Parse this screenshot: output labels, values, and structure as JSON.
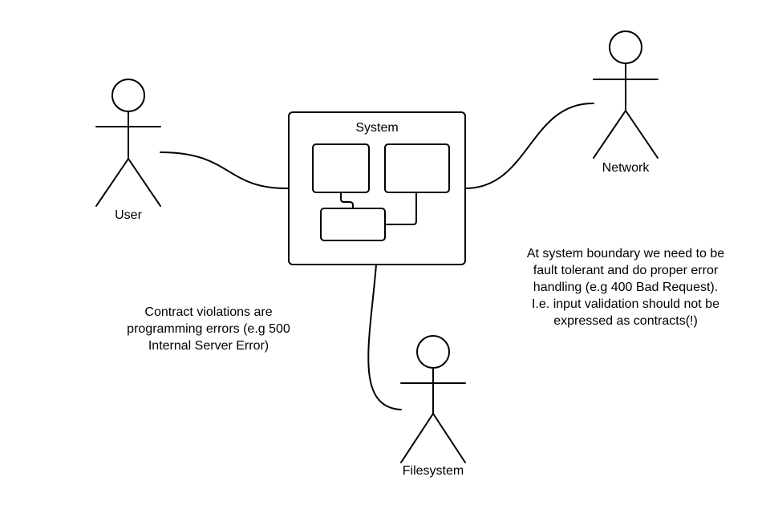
{
  "actors": {
    "user": {
      "label": "User"
    },
    "network": {
      "label": "Network"
    },
    "filesystem": {
      "label": "Filesystem"
    }
  },
  "system": {
    "label": "System"
  },
  "notes": {
    "contract": {
      "lines": [
        "Contract violations are",
        "programming errors (e.g 500",
        "Internal Server Error)"
      ]
    },
    "boundary": {
      "lines": [
        "At system boundary we need to be",
        "fault tolerant and do proper error",
        "handling (e.g 400 Bad Request).",
        "I.e. input validation should not be",
        "expressed as contracts(!)"
      ]
    }
  },
  "colors": {
    "stroke": "#000000",
    "background": "#ffffff"
  }
}
